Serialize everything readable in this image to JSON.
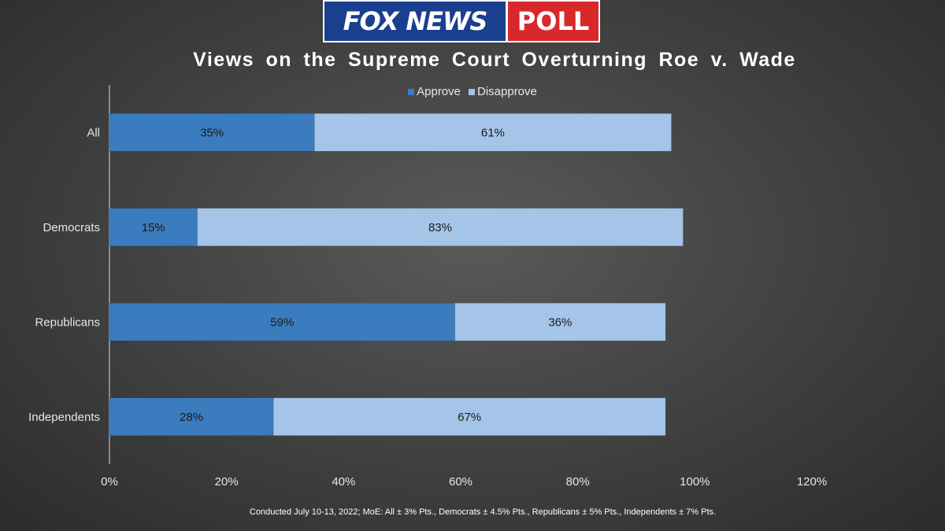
{
  "logo": {
    "left_text": "FOX NEWS",
    "right_text": "POLL"
  },
  "colors": {
    "approve": "#3a7cbd",
    "disapprove": "#a4c4e8",
    "axis": "#d9d9d9"
  },
  "chart_data": {
    "type": "bar",
    "orientation": "horizontal",
    "stacked": true,
    "title": "Views on the Supreme Court Overturning Roe v. Wade",
    "categories": [
      "All",
      "Democrats",
      "Republicans",
      "Independents"
    ],
    "series": [
      {
        "name": "Approve",
        "values": [
          35,
          15,
          59,
          28
        ],
        "labels": [
          "35%",
          "15%",
          "59%",
          "28%"
        ]
      },
      {
        "name": "Disapprove",
        "values": [
          61,
          83,
          36,
          67
        ],
        "labels": [
          "61%",
          "83%",
          "36%",
          "67%"
        ]
      }
    ],
    "xlim": [
      0,
      120
    ],
    "x_ticks": [
      "0%",
      "20%",
      "40%",
      "60%",
      "80%",
      "100%",
      "120%"
    ],
    "legend_position": "top",
    "grid": false
  },
  "footnote": "Conducted July 10-13, 2022; MoE: All ± 3% Pts., Democrats ± 4.5% Pts., Republicans ± 5% Pts., Independents ± 7% Pts."
}
